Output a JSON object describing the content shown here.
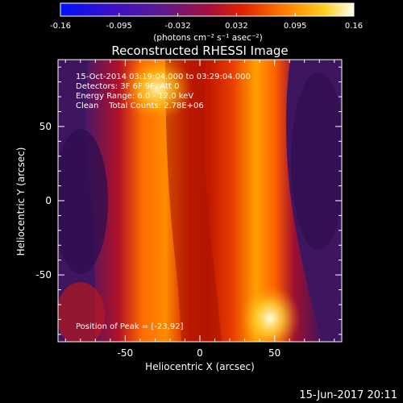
{
  "chart_data": {
    "type": "heatmap",
    "title": "Reconstructed RHESSI Image",
    "xlabel": "Heliocentric X (arcsec)",
    "ylabel": "Heliocentric Y (arcsec)",
    "xlim": [
      -95,
      95
    ],
    "ylim": [
      -95,
      95
    ],
    "xticks": [
      -50,
      0,
      50
    ],
    "yticks": [
      50,
      0,
      -50
    ],
    "colorbar": {
      "ticks": [
        "-0.16",
        "-0.095",
        "-0.032",
        "0.032",
        "0.095",
        "0.16"
      ],
      "units": "(photons cm⁻² s⁻¹ asec⁻²)",
      "range": [
        -0.16,
        0.16
      ],
      "colormap": "blue-purple-red-orange-yellow-white"
    },
    "annotations": [
      "15-Oct-2014 03:19:04.000 to 03:29:04.000",
      "Detectors: 3F 6F 9F, Att 0",
      "Energy Range: 6.0 - 12.0 keV",
      "Clean    Total Counts: 2.78E+06"
    ],
    "peak_label": "Position of Peak = [-23,92]",
    "peak": [
      -23,
      92
    ],
    "second_peak": [
      50,
      -85
    ],
    "grid": false
  },
  "footer": {
    "date": "15-Jun-2017 20:11"
  },
  "colors": {
    "background": "#000000",
    "text": "#ffffff",
    "dark_region": "#3a1858"
  }
}
